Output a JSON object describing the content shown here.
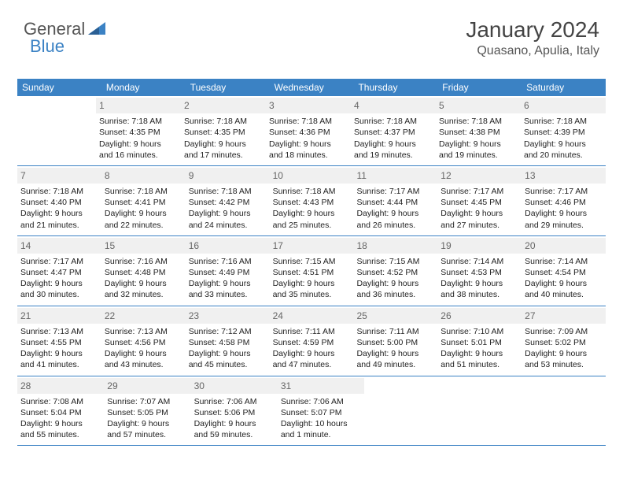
{
  "logo": {
    "text1": "General",
    "text2": "Blue"
  },
  "title": "January 2024",
  "location": "Quasano, Apulia, Italy",
  "colors": {
    "header_bg": "#3b82c4",
    "header_text": "#ffffff",
    "daynum_bg": "#f0f0f0",
    "daynum_text": "#666666",
    "rule": "#3b82c4",
    "body_text": "#222222"
  },
  "typography": {
    "title_fontsize": 28,
    "location_fontsize": 16,
    "header_fontsize": 12,
    "daynum_fontsize": 12,
    "body_fontsize": 10.5
  },
  "days_of_week": [
    "Sunday",
    "Monday",
    "Tuesday",
    "Wednesday",
    "Thursday",
    "Friday",
    "Saturday"
  ],
  "weeks": [
    [
      null,
      {
        "n": "1",
        "sr": "Sunrise: 7:18 AM",
        "ss": "Sunset: 4:35 PM",
        "d1": "Daylight: 9 hours",
        "d2": "and 16 minutes."
      },
      {
        "n": "2",
        "sr": "Sunrise: 7:18 AM",
        "ss": "Sunset: 4:35 PM",
        "d1": "Daylight: 9 hours",
        "d2": "and 17 minutes."
      },
      {
        "n": "3",
        "sr": "Sunrise: 7:18 AM",
        "ss": "Sunset: 4:36 PM",
        "d1": "Daylight: 9 hours",
        "d2": "and 18 minutes."
      },
      {
        "n": "4",
        "sr": "Sunrise: 7:18 AM",
        "ss": "Sunset: 4:37 PM",
        "d1": "Daylight: 9 hours",
        "d2": "and 19 minutes."
      },
      {
        "n": "5",
        "sr": "Sunrise: 7:18 AM",
        "ss": "Sunset: 4:38 PM",
        "d1": "Daylight: 9 hours",
        "d2": "and 19 minutes."
      },
      {
        "n": "6",
        "sr": "Sunrise: 7:18 AM",
        "ss": "Sunset: 4:39 PM",
        "d1": "Daylight: 9 hours",
        "d2": "and 20 minutes."
      }
    ],
    [
      {
        "n": "7",
        "sr": "Sunrise: 7:18 AM",
        "ss": "Sunset: 4:40 PM",
        "d1": "Daylight: 9 hours",
        "d2": "and 21 minutes."
      },
      {
        "n": "8",
        "sr": "Sunrise: 7:18 AM",
        "ss": "Sunset: 4:41 PM",
        "d1": "Daylight: 9 hours",
        "d2": "and 22 minutes."
      },
      {
        "n": "9",
        "sr": "Sunrise: 7:18 AM",
        "ss": "Sunset: 4:42 PM",
        "d1": "Daylight: 9 hours",
        "d2": "and 24 minutes."
      },
      {
        "n": "10",
        "sr": "Sunrise: 7:18 AM",
        "ss": "Sunset: 4:43 PM",
        "d1": "Daylight: 9 hours",
        "d2": "and 25 minutes."
      },
      {
        "n": "11",
        "sr": "Sunrise: 7:17 AM",
        "ss": "Sunset: 4:44 PM",
        "d1": "Daylight: 9 hours",
        "d2": "and 26 minutes."
      },
      {
        "n": "12",
        "sr": "Sunrise: 7:17 AM",
        "ss": "Sunset: 4:45 PM",
        "d1": "Daylight: 9 hours",
        "d2": "and 27 minutes."
      },
      {
        "n": "13",
        "sr": "Sunrise: 7:17 AM",
        "ss": "Sunset: 4:46 PM",
        "d1": "Daylight: 9 hours",
        "d2": "and 29 minutes."
      }
    ],
    [
      {
        "n": "14",
        "sr": "Sunrise: 7:17 AM",
        "ss": "Sunset: 4:47 PM",
        "d1": "Daylight: 9 hours",
        "d2": "and 30 minutes."
      },
      {
        "n": "15",
        "sr": "Sunrise: 7:16 AM",
        "ss": "Sunset: 4:48 PM",
        "d1": "Daylight: 9 hours",
        "d2": "and 32 minutes."
      },
      {
        "n": "16",
        "sr": "Sunrise: 7:16 AM",
        "ss": "Sunset: 4:49 PM",
        "d1": "Daylight: 9 hours",
        "d2": "and 33 minutes."
      },
      {
        "n": "17",
        "sr": "Sunrise: 7:15 AM",
        "ss": "Sunset: 4:51 PM",
        "d1": "Daylight: 9 hours",
        "d2": "and 35 minutes."
      },
      {
        "n": "18",
        "sr": "Sunrise: 7:15 AM",
        "ss": "Sunset: 4:52 PM",
        "d1": "Daylight: 9 hours",
        "d2": "and 36 minutes."
      },
      {
        "n": "19",
        "sr": "Sunrise: 7:14 AM",
        "ss": "Sunset: 4:53 PM",
        "d1": "Daylight: 9 hours",
        "d2": "and 38 minutes."
      },
      {
        "n": "20",
        "sr": "Sunrise: 7:14 AM",
        "ss": "Sunset: 4:54 PM",
        "d1": "Daylight: 9 hours",
        "d2": "and 40 minutes."
      }
    ],
    [
      {
        "n": "21",
        "sr": "Sunrise: 7:13 AM",
        "ss": "Sunset: 4:55 PM",
        "d1": "Daylight: 9 hours",
        "d2": "and 41 minutes."
      },
      {
        "n": "22",
        "sr": "Sunrise: 7:13 AM",
        "ss": "Sunset: 4:56 PM",
        "d1": "Daylight: 9 hours",
        "d2": "and 43 minutes."
      },
      {
        "n": "23",
        "sr": "Sunrise: 7:12 AM",
        "ss": "Sunset: 4:58 PM",
        "d1": "Daylight: 9 hours",
        "d2": "and 45 minutes."
      },
      {
        "n": "24",
        "sr": "Sunrise: 7:11 AM",
        "ss": "Sunset: 4:59 PM",
        "d1": "Daylight: 9 hours",
        "d2": "and 47 minutes."
      },
      {
        "n": "25",
        "sr": "Sunrise: 7:11 AM",
        "ss": "Sunset: 5:00 PM",
        "d1": "Daylight: 9 hours",
        "d2": "and 49 minutes."
      },
      {
        "n": "26",
        "sr": "Sunrise: 7:10 AM",
        "ss": "Sunset: 5:01 PM",
        "d1": "Daylight: 9 hours",
        "d2": "and 51 minutes."
      },
      {
        "n": "27",
        "sr": "Sunrise: 7:09 AM",
        "ss": "Sunset: 5:02 PM",
        "d1": "Daylight: 9 hours",
        "d2": "and 53 minutes."
      }
    ],
    [
      {
        "n": "28",
        "sr": "Sunrise: 7:08 AM",
        "ss": "Sunset: 5:04 PM",
        "d1": "Daylight: 9 hours",
        "d2": "and 55 minutes."
      },
      {
        "n": "29",
        "sr": "Sunrise: 7:07 AM",
        "ss": "Sunset: 5:05 PM",
        "d1": "Daylight: 9 hours",
        "d2": "and 57 minutes."
      },
      {
        "n": "30",
        "sr": "Sunrise: 7:06 AM",
        "ss": "Sunset: 5:06 PM",
        "d1": "Daylight: 9 hours",
        "d2": "and 59 minutes."
      },
      {
        "n": "31",
        "sr": "Sunrise: 7:06 AM",
        "ss": "Sunset: 5:07 PM",
        "d1": "Daylight: 10 hours",
        "d2": "and 1 minute."
      },
      null,
      null,
      null
    ]
  ]
}
